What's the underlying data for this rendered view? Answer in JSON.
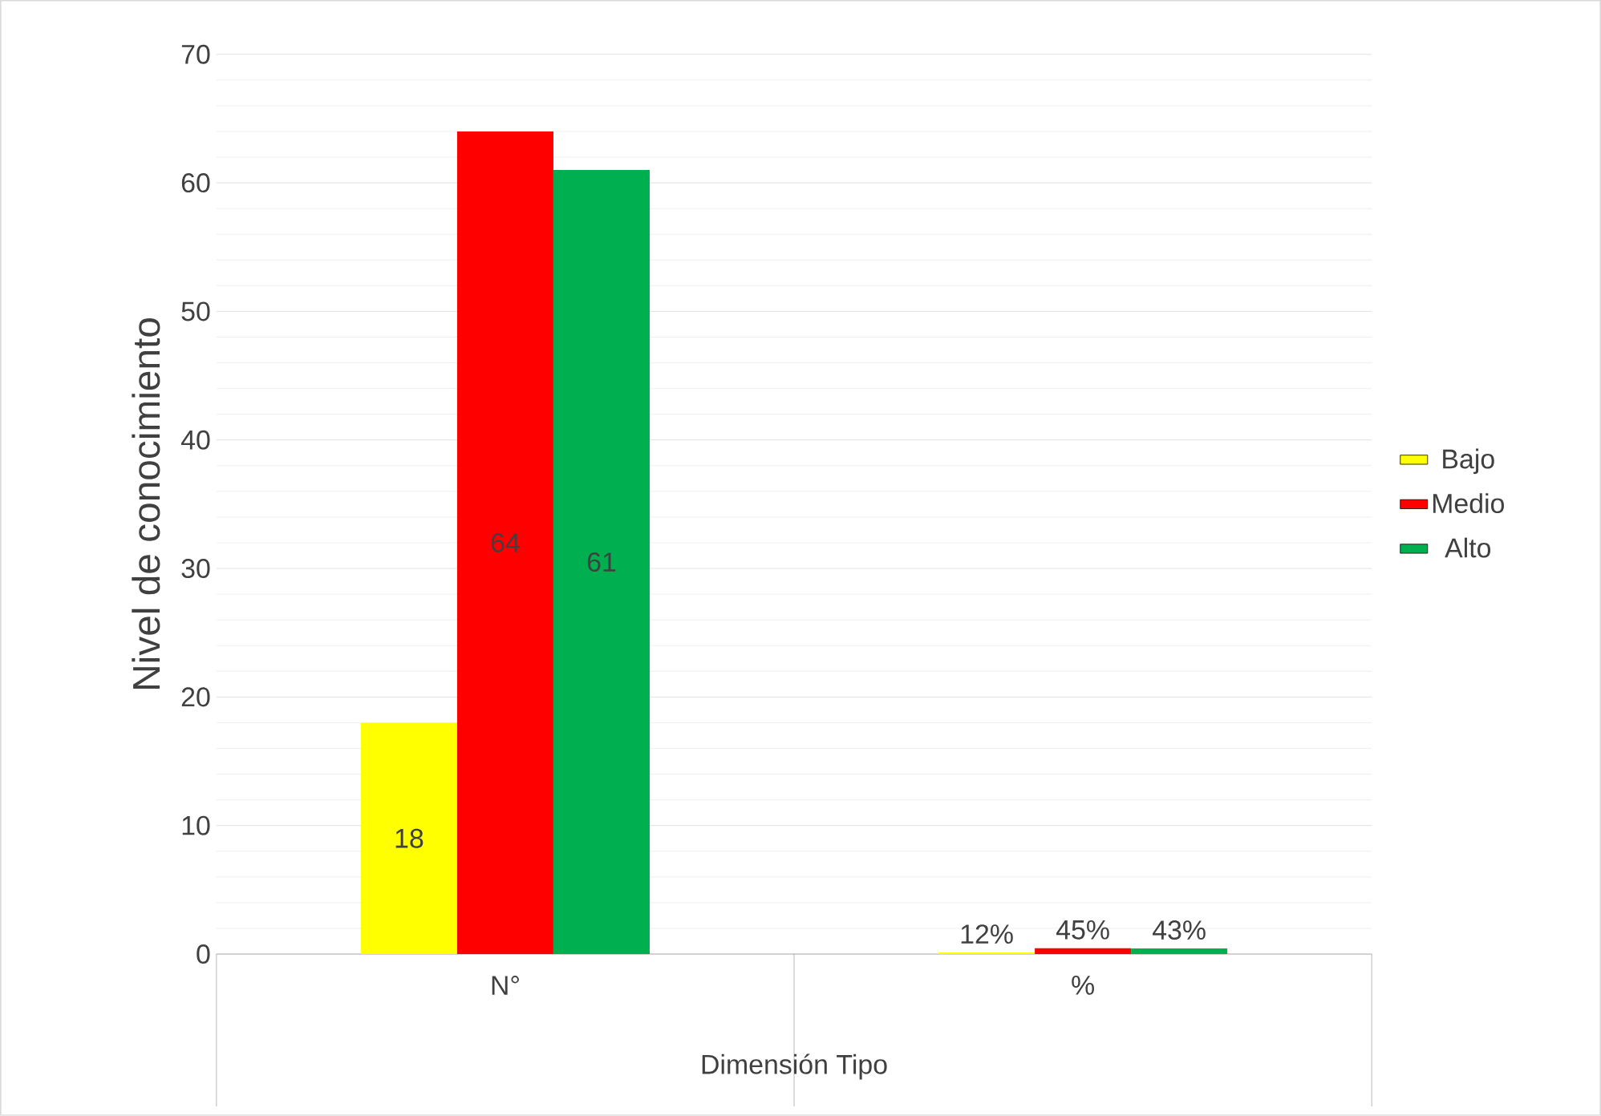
{
  "chart_data": {
    "type": "bar",
    "xlabel": "Dimensión Tipo",
    "ylabel": "Nivel de conocimiento",
    "categories": [
      "N°",
      "%"
    ],
    "series": [
      {
        "name": "Bajo",
        "color": "#ffff00",
        "values": [
          18,
          0.12
        ],
        "value_labels": [
          "18",
          "12%"
        ]
      },
      {
        "name": "Medio",
        "color": "#ff0000",
        "values": [
          64,
          0.45
        ],
        "value_labels": [
          "64",
          "45%"
        ]
      },
      {
        "name": "Alto",
        "color": "#00b050",
        "values": [
          61,
          0.43
        ],
        "value_labels": [
          "61",
          "43%"
        ]
      }
    ],
    "ylim": [
      0,
      70
    ],
    "yticks": [
      0,
      10,
      20,
      30,
      40,
      50,
      60,
      70
    ],
    "grid": "y",
    "legend": "right"
  }
}
